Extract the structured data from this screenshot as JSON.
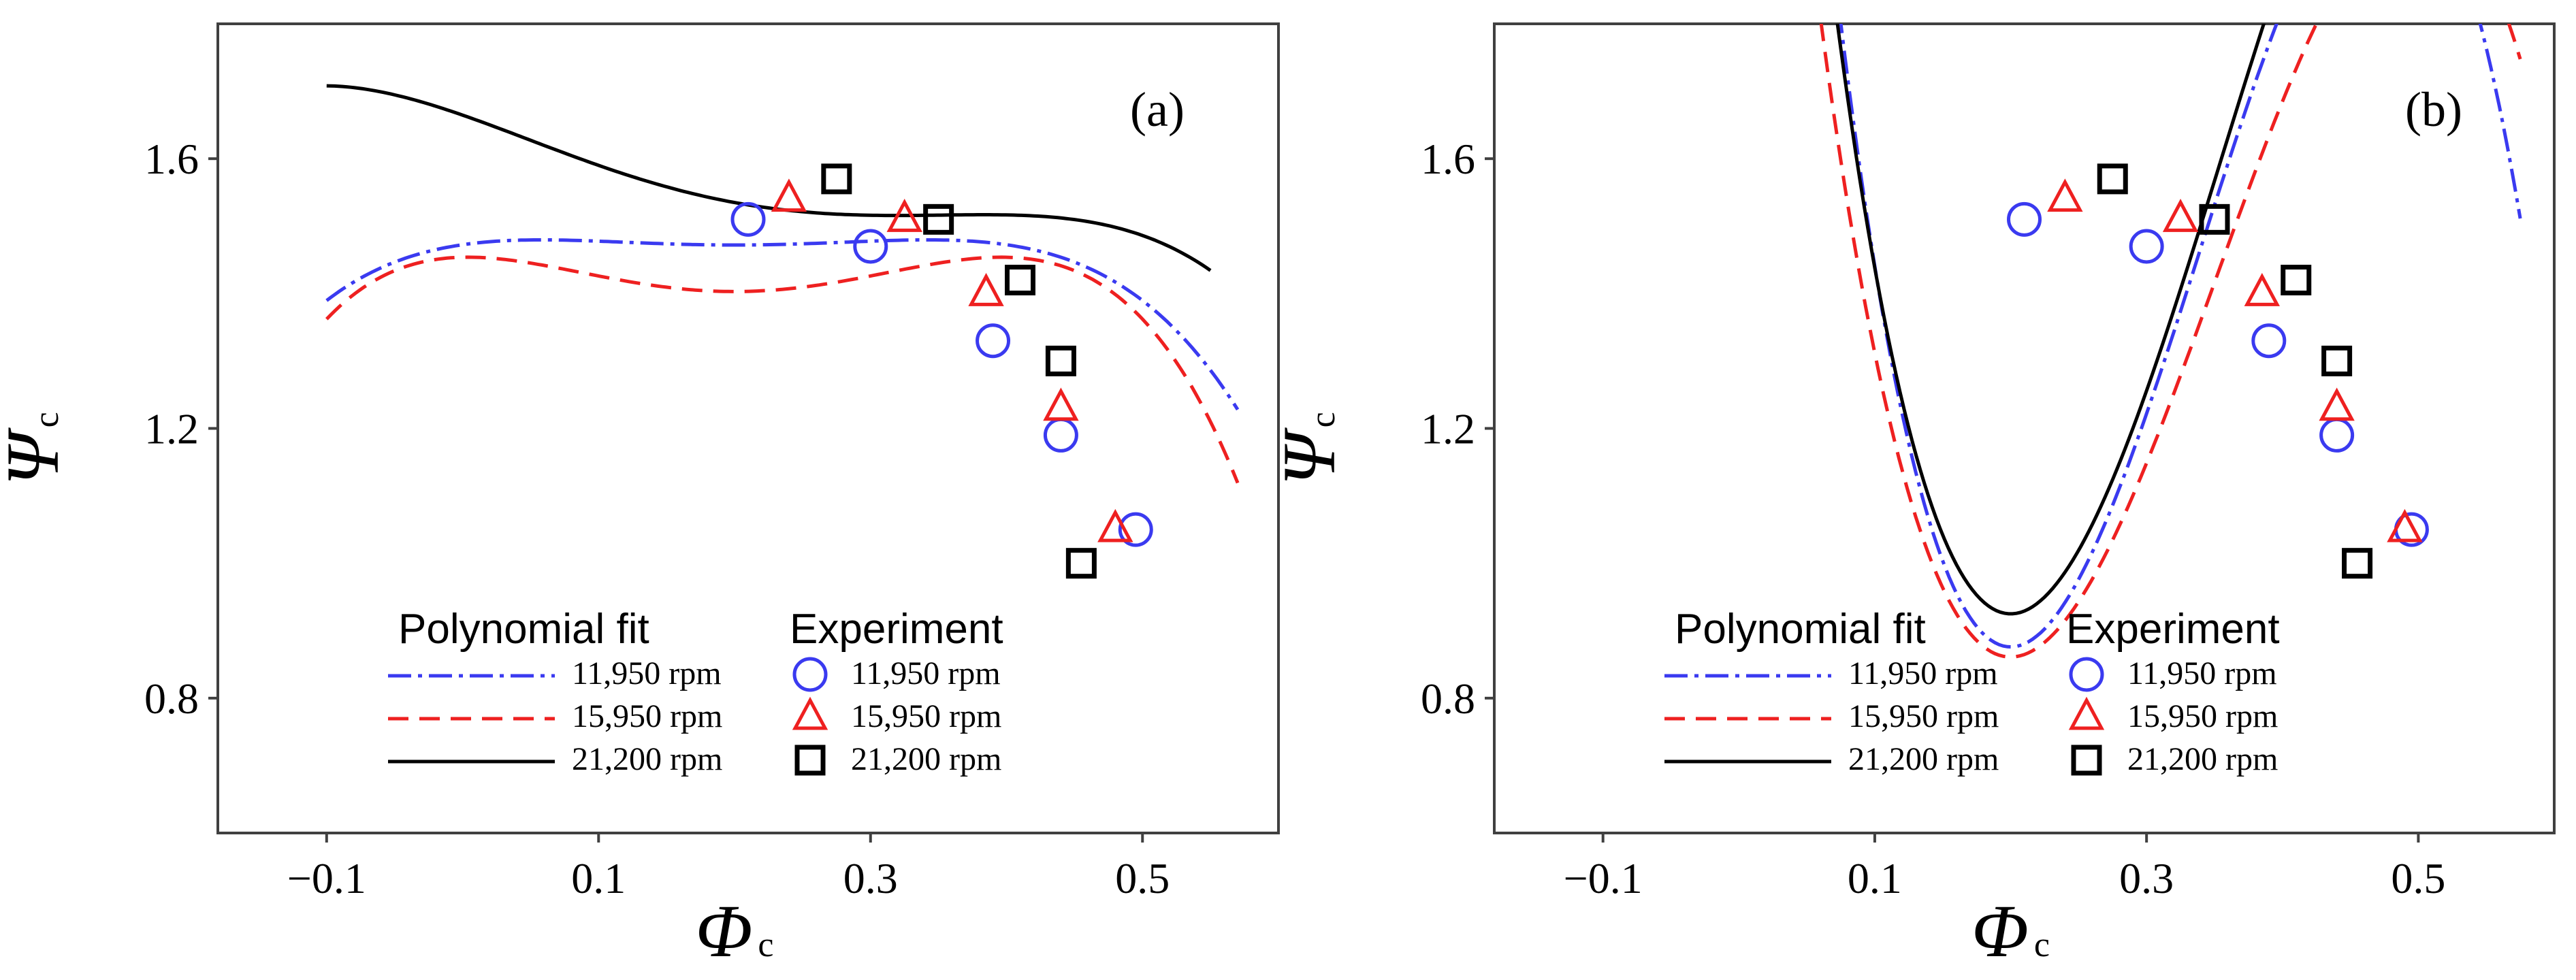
{
  "figure": {
    "x_axis": {
      "symbol": "Φ",
      "subscript": "c"
    },
    "y_axis": {
      "symbol": "Ψ",
      "subscript": "c"
    },
    "legend": {
      "fit_title": "Polynomial  fit",
      "exp_title": "Experiment",
      "speeds": [
        "11,950  rpm",
        "15,950  rpm",
        "21,200  rpm"
      ]
    },
    "colors": {
      "s11950": "#3a3af0",
      "s15950": "#ee2020",
      "s21200": "#000000"
    },
    "markers": {
      "s11950": "circle",
      "s15950": "triangle",
      "s21200": "square"
    },
    "line_styles": {
      "s11950": "dash-dot",
      "s15950": "dashed",
      "s21200": "solid"
    }
  },
  "chart_data": [
    {
      "panel": "(a)",
      "type": "line",
      "xlabel": "Φc",
      "ylabel": "Ψc",
      "xlim": [
        -0.18,
        0.6
      ],
      "ylim": [
        0.6,
        1.8
      ],
      "xticks": [
        -0.1,
        0.1,
        0.3,
        0.5
      ],
      "xtick_labels": [
        "−0.1",
        "0.1",
        "0.3",
        "0.5"
      ],
      "yticks": [
        0.8,
        1.2,
        1.6
      ],
      "ytick_labels": [
        "0.8",
        "1.2",
        "1.6"
      ],
      "fit_series": [
        {
          "name": "11,950 rpm",
          "x_range": [
            -0.1,
            0.57
          ],
          "coeffs": [
            1.472,
            0.0,
            0.75,
            0.0,
            -18.5
          ]
        },
        {
          "name": "15,950 rpm",
          "x_range": [
            -0.1,
            0.57
          ],
          "coeffs": [
            1.403,
            0.0,
            2.65,
            0.0,
            -34.5
          ]
        },
        {
          "name": "21,200 rpm",
          "x_range": [
            -0.1,
            0.55
          ],
          "coeffs": [
            1.535,
            -0.37,
            1.95,
            0.0,
            -14.0
          ]
        }
      ],
      "experiment_series": [
        {
          "name": "11,950 rpm",
          "x": [
            0.21,
            0.3,
            0.39,
            0.44,
            0.495
          ],
          "y": [
            1.51,
            1.47,
            1.33,
            1.19,
            1.05
          ]
        },
        {
          "name": "15,950 rpm",
          "x": [
            0.24,
            0.325,
            0.385,
            0.44,
            0.48
          ],
          "y": [
            1.54,
            1.51,
            1.4,
            1.23,
            1.05
          ]
        },
        {
          "name": "21,200 rpm",
          "x": [
            0.275,
            0.35,
            0.41,
            0.44,
            0.455
          ],
          "y": [
            1.57,
            1.51,
            1.42,
            1.3,
            1.0
          ]
        }
      ]
    },
    {
      "panel": "(b)",
      "type": "line",
      "xlabel": "Φc",
      "ylabel": "Ψc",
      "xlim": [
        -0.18,
        0.6
      ],
      "ylim": [
        0.6,
        1.8
      ],
      "xticks": [
        -0.1,
        0.1,
        0.3,
        0.5
      ],
      "xtick_labels": [
        "−0.1",
        "0.1",
        "0.3",
        "0.5"
      ],
      "yticks": [
        0.8,
        1.2,
        1.6
      ],
      "ytick_labels": [
        "0.8",
        "1.2",
        "1.6"
      ],
      "fit_series": [
        {
          "name": "11,950 rpm",
          "x_range": [
            -0.1,
            0.575
          ],
          "coeffs": [
            0.876,
            0.0,
            45.52,
            -109.34,
            0.0
          ]
        },
        {
          "name": "15,950 rpm",
          "x_range": [
            -0.1,
            0.575
          ],
          "coeffs": [
            0.861,
            0.0,
            36.92,
            -81.64,
            0.0
          ]
        },
        {
          "name": "21,200 rpm",
          "x_range": [
            -0.1,
            0.55
          ],
          "coeffs": [
            0.925,
            0.0,
            42.21,
            -91.23,
            0.0
          ]
        }
      ],
      "experiment_series": [
        {
          "name": "11,950 rpm",
          "x": [
            0.21,
            0.3,
            0.39,
            0.44,
            0.495
          ],
          "y": [
            1.51,
            1.47,
            1.33,
            1.19,
            1.05
          ]
        },
        {
          "name": "15,950 rpm",
          "x": [
            0.24,
            0.325,
            0.385,
            0.44,
            0.49
          ],
          "y": [
            1.54,
            1.51,
            1.4,
            1.23,
            1.05
          ]
        },
        {
          "name": "21,200 rpm",
          "x": [
            0.275,
            0.35,
            0.41,
            0.44,
            0.455
          ],
          "y": [
            1.57,
            1.51,
            1.42,
            1.3,
            1.0
          ]
        }
      ]
    }
  ]
}
